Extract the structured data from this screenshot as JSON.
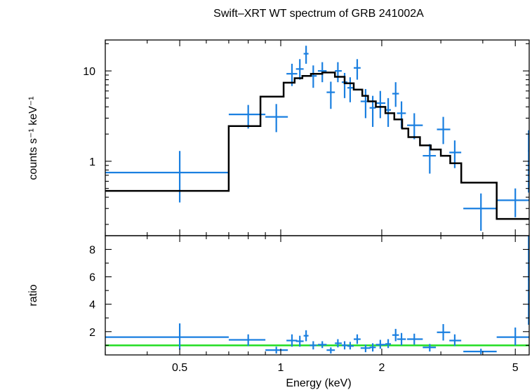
{
  "chart_data": {
    "type": "scatter",
    "title": "Swift–XRT WT spectrum of GRB 241002A",
    "xlabel": "Energy (keV)",
    "x_scale": "log",
    "xlim": [
      0.3,
      5.5
    ],
    "x_ticks": [
      {
        "value": 0.5,
        "label": "0.5"
      },
      {
        "value": 1,
        "label": "1"
      },
      {
        "value": 2,
        "label": "2"
      },
      {
        "value": 5,
        "label": "5"
      }
    ],
    "colors": {
      "data": "#1a7fe0",
      "model": "#000000",
      "unity": "#22dd22",
      "axes": "#000000"
    },
    "panels": [
      {
        "name": "spectrum",
        "ylabel": "counts s⁻¹ keV⁻¹",
        "y_scale": "log",
        "ylim": [
          0.15,
          22
        ],
        "y_ticks": [
          {
            "value": 1,
            "label": "1"
          },
          {
            "value": 10,
            "label": "10"
          }
        ],
        "series": [
          {
            "name": "data",
            "points": [
              {
                "x": 0.5,
                "xlo": 0.3,
                "xhi": 0.7,
                "y": 0.75,
                "ylo": 0.35,
                "yhi": 1.3
              },
              {
                "x": 0.8,
                "xlo": 0.7,
                "xhi": 0.9,
                "y": 3.3,
                "ylo": 2.3,
                "yhi": 4.2
              },
              {
                "x": 0.97,
                "xlo": 0.9,
                "xhi": 1.05,
                "y": 3.1,
                "ylo": 2.1,
                "yhi": 4.3
              },
              {
                "x": 1.08,
                "xlo": 1.04,
                "xhi": 1.12,
                "y": 9.3,
                "ylo": 6.8,
                "yhi": 12
              },
              {
                "x": 1.14,
                "xlo": 1.11,
                "xhi": 1.17,
                "y": 10.5,
                "ylo": 8,
                "yhi": 13.5
              },
              {
                "x": 1.19,
                "xlo": 1.17,
                "xhi": 1.21,
                "y": 15.5,
                "ylo": 12,
                "yhi": 19
              },
              {
                "x": 1.25,
                "xlo": 1.22,
                "xhi": 1.28,
                "y": 8.8,
                "ylo": 6.5,
                "yhi": 11.5
              },
              {
                "x": 1.33,
                "xlo": 1.29,
                "xhi": 1.37,
                "y": 10,
                "ylo": 7.5,
                "yhi": 12.5
              },
              {
                "x": 1.41,
                "xlo": 1.37,
                "xhi": 1.45,
                "y": 5.8,
                "ylo": 3.8,
                "yhi": 7.6
              },
              {
                "x": 1.48,
                "xlo": 1.45,
                "xhi": 1.52,
                "y": 10,
                "ylo": 7.5,
                "yhi": 12.5
              },
              {
                "x": 1.55,
                "xlo": 1.52,
                "xhi": 1.58,
                "y": 7.5,
                "ylo": 5,
                "yhi": 9.5
              },
              {
                "x": 1.61,
                "xlo": 1.58,
                "xhi": 1.65,
                "y": 6.5,
                "ylo": 4.5,
                "yhi": 8.5
              },
              {
                "x": 1.69,
                "xlo": 1.65,
                "xhi": 1.73,
                "y": 10.8,
                "ylo": 8,
                "yhi": 13.5
              },
              {
                "x": 1.79,
                "xlo": 1.73,
                "xhi": 1.85,
                "y": 4.6,
                "ylo": 3,
                "yhi": 6.3
              },
              {
                "x": 1.88,
                "xlo": 1.84,
                "xhi": 1.92,
                "y": 3.9,
                "ylo": 2.4,
                "yhi": 5.3
              },
              {
                "x": 1.98,
                "xlo": 1.92,
                "xhi": 2.05,
                "y": 4.4,
                "ylo": 3,
                "yhi": 6
              },
              {
                "x": 2.09,
                "xlo": 2.05,
                "xhi": 2.13,
                "y": 3.7,
                "ylo": 2.4,
                "yhi": 5
              },
              {
                "x": 2.2,
                "xlo": 2.15,
                "xhi": 2.25,
                "y": 5.6,
                "ylo": 4,
                "yhi": 7.5
              },
              {
                "x": 2.29,
                "xlo": 2.22,
                "xhi": 2.36,
                "y": 3.4,
                "ylo": 2.3,
                "yhi": 4.6
              },
              {
                "x": 2.5,
                "xlo": 2.38,
                "xhi": 2.65,
                "y": 2.5,
                "ylo": 1.75,
                "yhi": 3.4
              },
              {
                "x": 2.78,
                "xlo": 2.65,
                "xhi": 2.9,
                "y": 1.15,
                "ylo": 0.73,
                "yhi": 1.55
              },
              {
                "x": 3.05,
                "xlo": 2.92,
                "xhi": 3.2,
                "y": 2.25,
                "ylo": 1.55,
                "yhi": 3.1
              },
              {
                "x": 3.3,
                "xlo": 3.18,
                "xhi": 3.45,
                "y": 1.25,
                "ylo": 0.84,
                "yhi": 1.7
              },
              {
                "x": 3.95,
                "xlo": 3.5,
                "xhi": 4.4,
                "y": 0.3,
                "ylo": 0.17,
                "yhi": 0.44
              },
              {
                "x": 5.0,
                "xlo": 4.4,
                "xhi": 5.5,
                "y": 0.37,
                "ylo": 0.24,
                "yhi": 0.5
              },
              {
                "x": 5.48,
                "xlo": 5.45,
                "xhi": 5.5,
                "y": 1.3,
                "ylo": 0.45,
                "yhi": 2.2
              }
            ]
          },
          {
            "name": "model",
            "type": "step",
            "edges": [
              0.3,
              0.7,
              0.87,
              1.02,
              1.1,
              1.16,
              1.23,
              1.33,
              1.45,
              1.55,
              1.65,
              1.75,
              1.82,
              1.92,
              2.05,
              2.18,
              2.3,
              2.4,
              2.6,
              2.8,
              3.0,
              3.2,
              3.45,
              4.4,
              5.5
            ],
            "values": [
              0.47,
              2.45,
              5.2,
              7.4,
              8.3,
              8.8,
              9.3,
              9.6,
              8.6,
              7.3,
              6.2,
              5.3,
              4.6,
              4.0,
              3.4,
              2.9,
              2.3,
              1.85,
              1.5,
              1.35,
              1.15,
              0.95,
              0.58,
              0.23
            ]
          }
        ]
      },
      {
        "name": "ratio",
        "ylabel": "ratio",
        "y_scale": "linear",
        "ylim": [
          0.3,
          9
        ],
        "y_ticks": [
          {
            "value": 2,
            "label": "2"
          },
          {
            "value": 4,
            "label": "4"
          },
          {
            "value": 6,
            "label": "6"
          },
          {
            "value": 8,
            "label": "8"
          }
        ],
        "reference_line": 1,
        "series": [
          {
            "name": "data",
            "points": [
              {
                "x": 0.5,
                "xlo": 0.3,
                "xhi": 0.7,
                "y": 1.6,
                "ylo": 0.7,
                "yhi": 2.6
              },
              {
                "x": 0.8,
                "xlo": 0.7,
                "xhi": 0.9,
                "y": 1.4,
                "ylo": 0.95,
                "yhi": 1.8
              },
              {
                "x": 0.97,
                "xlo": 0.9,
                "xhi": 1.05,
                "y": 0.65,
                "ylo": 0.4,
                "yhi": 0.9
              },
              {
                "x": 1.08,
                "xlo": 1.04,
                "xhi": 1.12,
                "y": 1.35,
                "ylo": 0.9,
                "yhi": 1.8
              },
              {
                "x": 1.14,
                "xlo": 1.11,
                "xhi": 1.17,
                "y": 1.3,
                "ylo": 0.9,
                "yhi": 1.7
              },
              {
                "x": 1.19,
                "xlo": 1.17,
                "xhi": 1.21,
                "y": 1.7,
                "ylo": 1.3,
                "yhi": 2.1
              },
              {
                "x": 1.25,
                "xlo": 1.22,
                "xhi": 1.28,
                "y": 1.0,
                "ylo": 0.7,
                "yhi": 1.3
              },
              {
                "x": 1.33,
                "xlo": 1.29,
                "xhi": 1.37,
                "y": 1.05,
                "ylo": 0.8,
                "yhi": 1.3
              },
              {
                "x": 1.41,
                "xlo": 1.37,
                "xhi": 1.45,
                "y": 0.65,
                "ylo": 0.4,
                "yhi": 0.85
              },
              {
                "x": 1.48,
                "xlo": 1.45,
                "xhi": 1.52,
                "y": 1.15,
                "ylo": 0.85,
                "yhi": 1.45
              },
              {
                "x": 1.55,
                "xlo": 1.52,
                "xhi": 1.58,
                "y": 1.0,
                "ylo": 0.7,
                "yhi": 1.3
              },
              {
                "x": 1.61,
                "xlo": 1.58,
                "xhi": 1.65,
                "y": 0.95,
                "ylo": 0.7,
                "yhi": 1.25
              },
              {
                "x": 1.69,
                "xlo": 1.65,
                "xhi": 1.73,
                "y": 1.45,
                "ylo": 1.1,
                "yhi": 1.8
              },
              {
                "x": 1.79,
                "xlo": 1.73,
                "xhi": 1.85,
                "y": 0.8,
                "ylo": 0.5,
                "yhi": 1.05
              },
              {
                "x": 1.88,
                "xlo": 1.84,
                "xhi": 1.92,
                "y": 0.85,
                "ylo": 0.55,
                "yhi": 1.15
              },
              {
                "x": 1.98,
                "xlo": 1.92,
                "xhi": 2.05,
                "y": 1.05,
                "ylo": 0.75,
                "yhi": 1.4
              },
              {
                "x": 2.09,
                "xlo": 2.05,
                "xhi": 2.13,
                "y": 1.1,
                "ylo": 0.8,
                "yhi": 1.45
              },
              {
                "x": 2.2,
                "xlo": 2.15,
                "xhi": 2.25,
                "y": 1.75,
                "ylo": 1.3,
                "yhi": 2.2
              },
              {
                "x": 2.29,
                "xlo": 2.22,
                "xhi": 2.36,
                "y": 1.45,
                "ylo": 1.0,
                "yhi": 1.9
              },
              {
                "x": 2.5,
                "xlo": 2.38,
                "xhi": 2.65,
                "y": 1.45,
                "ylo": 1.05,
                "yhi": 1.85
              },
              {
                "x": 2.78,
                "xlo": 2.65,
                "xhi": 2.9,
                "y": 0.85,
                "ylo": 0.55,
                "yhi": 1.1
              },
              {
                "x": 3.05,
                "xlo": 2.92,
                "xhi": 3.2,
                "y": 1.95,
                "ylo": 1.35,
                "yhi": 2.55
              },
              {
                "x": 3.3,
                "xlo": 3.18,
                "xhi": 3.45,
                "y": 1.35,
                "ylo": 0.95,
                "yhi": 1.8
              },
              {
                "x": 3.95,
                "xlo": 3.5,
                "xhi": 4.4,
                "y": 0.55,
                "ylo": 0.35,
                "yhi": 0.75
              },
              {
                "x": 5.0,
                "xlo": 4.4,
                "xhi": 5.5,
                "y": 1.6,
                "ylo": 1.0,
                "yhi": 2.3
              },
              {
                "x": 5.48,
                "xlo": 5.45,
                "xhi": 5.5,
                "y": 5.8,
                "ylo": 2.5,
                "yhi": 9
              }
            ]
          }
        ]
      }
    ]
  }
}
